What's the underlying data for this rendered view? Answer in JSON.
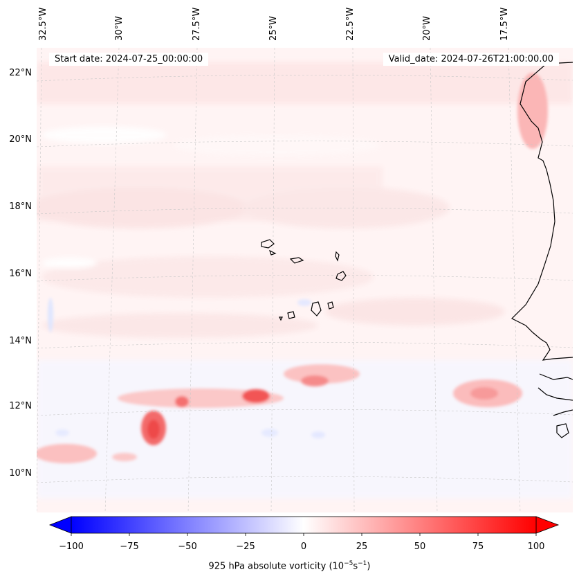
{
  "map": {
    "lon_labels": [
      "32.5°W",
      "30°W",
      "27.5°W",
      "25°W",
      "22.5°W",
      "20°W",
      "17.5°W"
    ],
    "lat_labels": [
      "22°N",
      "20°N",
      "18°N",
      "16°N",
      "14°N",
      "12°N",
      "10°N"
    ],
    "start_date": "Start date: 2024-07-25_00:00:00",
    "valid_date": "Valid_date: 2024-07-26T21:00:00.00"
  },
  "colorbar": {
    "ticks": [
      "−100",
      "−75",
      "−50",
      "−25",
      "0",
      "25",
      "50",
      "75",
      "100"
    ],
    "label_prefix": "925 hPa absolute vorticity (10",
    "label_exp1": "−5",
    "label_mid": "s",
    "label_exp2": "−1",
    "label_suffix": ")",
    "min": -100,
    "max": 100,
    "low_color": "#0000ff",
    "mid_color": "#ffffff",
    "high_color": "#ff0000"
  }
}
